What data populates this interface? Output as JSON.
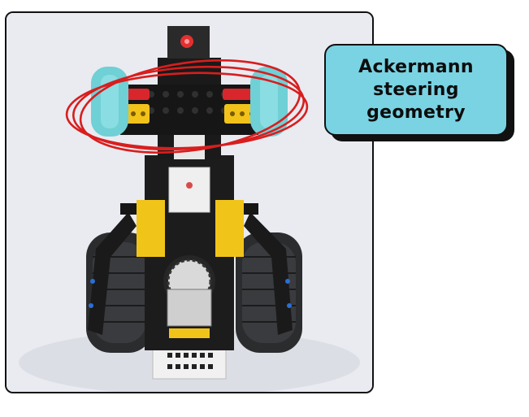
{
  "callout": {
    "label": "Ackermann\nsteering\ngeometry",
    "bg_color": "#7ad3e3",
    "shadow_color": "#111111"
  },
  "photo": {
    "subject": "robot-car-photo",
    "highlight_color": "#d81e1e",
    "accent_colors": [
      "#f2c21b",
      "#6fd0d6",
      "#d9262c",
      "#1b1b1b"
    ]
  }
}
